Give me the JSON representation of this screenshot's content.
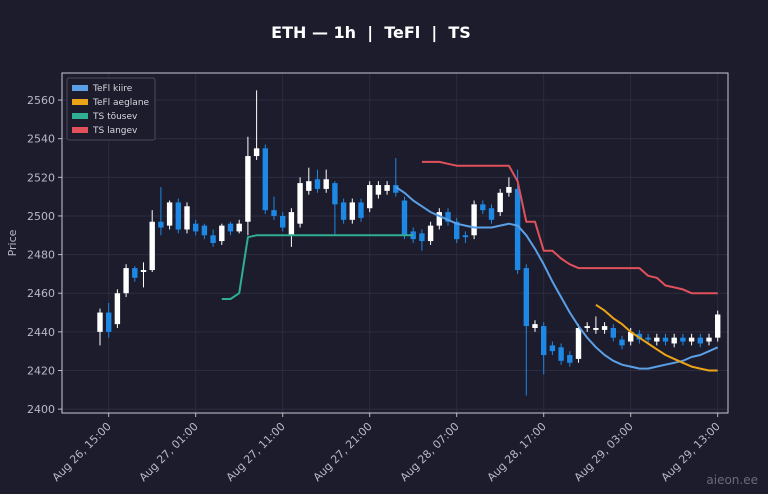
{
  "chart_data": {
    "type": "candlestick",
    "title": "ETH — 1h  |  TeFl  |  TS",
    "ylabel": "Price",
    "watermark": "aieon.ee",
    "grid": true,
    "legend": "upper left",
    "up_color": "#ffffff",
    "down_color": "#1e88e5",
    "ylim": [
      2398,
      2574
    ],
    "yticks": [
      2400,
      2420,
      2440,
      2460,
      2480,
      2500,
      2520,
      2540,
      2560
    ],
    "categories": [
      null,
      "Aug 26, 15:00",
      null,
      null,
      null,
      null,
      null,
      null,
      null,
      null,
      null,
      "Aug 27, 01:00",
      null,
      null,
      null,
      null,
      null,
      null,
      null,
      null,
      null,
      "Aug 27, 11:00",
      null,
      null,
      null,
      null,
      null,
      null,
      null,
      null,
      null,
      "Aug 27, 21:00",
      null,
      null,
      null,
      null,
      null,
      null,
      null,
      null,
      null,
      "Aug 28, 07:00",
      null,
      null,
      null,
      null,
      null,
      null,
      null,
      null,
      null,
      "Aug 28, 17:00",
      null,
      null,
      null,
      null,
      null,
      null,
      null,
      null,
      null,
      "Aug 29, 03:00",
      null,
      null,
      null,
      null,
      null,
      null,
      null,
      null,
      null,
      "Aug 29, 13:00"
    ],
    "open": [
      2440,
      2450,
      2444,
      2460,
      2473,
      2471,
      2472,
      2497,
      2495,
      2507,
      2493,
      2496,
      2495,
      2490,
      2487,
      2496,
      2492,
      2497,
      2531,
      2535,
      2503,
      2500,
      2490,
      2496,
      2513,
      2519,
      2514,
      2517,
      2507,
      2498,
      2507,
      2504,
      2511,
      2513,
      2516,
      2508,
      2492,
      2491,
      2487,
      2495,
      2502,
      2497,
      2490,
      2490,
      2506,
      2504,
      2502,
      2512,
      2514,
      2473,
      2442,
      2443,
      2433,
      2432,
      2428,
      2426,
      2442,
      2441,
      2441,
      2442,
      2436,
      2435,
      2439,
      2437,
      2435,
      2437,
      2434,
      2437,
      2435,
      2437,
      2435,
      2437
    ],
    "high": [
      2452,
      2455,
      2462,
      2475,
      2474,
      2476,
      2503,
      2515,
      2508,
      2509,
      2507,
      2498,
      2496,
      2493,
      2496,
      2497,
      2498,
      2541,
      2565,
      2537,
      2510,
      2502,
      2504,
      2520,
      2525,
      2524,
      2524,
      2518,
      2509,
      2509,
      2509,
      2518,
      2518,
      2518,
      2530,
      2510,
      2494,
      2493,
      2497,
      2504,
      2504,
      2499,
      2492,
      2508,
      2508,
      2506,
      2514,
      2520,
      2524,
      2475,
      2446,
      2445,
      2435,
      2434,
      2430,
      2444,
      2445,
      2448,
      2445,
      2444,
      2438,
      2442,
      2441,
      2439,
      2439,
      2439,
      2439,
      2439,
      2439,
      2439,
      2439,
      2451
    ],
    "low": [
      2433,
      2437,
      2442,
      2458,
      2466,
      2463,
      2471,
      2490,
      2493,
      2491,
      2491,
      2490,
      2488,
      2484,
      2485,
      2490,
      2491,
      2490,
      2529,
      2501,
      2498,
      2492,
      2484,
      2494,
      2511,
      2512,
      2512,
      2490,
      2496,
      2496,
      2497,
      2502,
      2509,
      2511,
      2510,
      2488,
      2486,
      2482,
      2485,
      2493,
      2495,
      2486,
      2486,
      2488,
      2501,
      2496,
      2500,
      2510,
      2470,
      2407,
      2440,
      2418,
      2428,
      2423,
      2422,
      2424,
      2440,
      2439,
      2439,
      2435,
      2431,
      2433,
      2434,
      2434,
      2433,
      2433,
      2432,
      2433,
      2433,
      2432,
      2433,
      2435
    ],
    "close": [
      2450,
      2440,
      2460,
      2473,
      2468,
      2472,
      2497,
      2494,
      2507,
      2493,
      2505,
      2492,
      2490,
      2486,
      2495,
      2492,
      2496,
      2531,
      2535,
      2503,
      2500,
      2494,
      2502,
      2517,
      2518,
      2514,
      2519,
      2506,
      2498,
      2507,
      2499,
      2516,
      2516,
      2516,
      2512,
      2490,
      2488,
      2487,
      2495,
      2502,
      2497,
      2488,
      2489,
      2506,
      2503,
      2498,
      2512,
      2515,
      2472,
      2443,
      2444,
      2428,
      2430,
      2425,
      2424,
      2442,
      2443,
      2442,
      2443,
      2437,
      2433,
      2440,
      2436,
      2436,
      2437,
      2435,
      2437,
      2435,
      2437,
      2434,
      2437,
      2449
    ],
    "series": [
      {
        "name": "TeFl kiire",
        "color": "#5b9fe6",
        "values": [
          null,
          null,
          null,
          null,
          null,
          null,
          null,
          null,
          null,
          null,
          null,
          null,
          null,
          null,
          null,
          null,
          null,
          null,
          null,
          null,
          null,
          null,
          null,
          null,
          null,
          null,
          null,
          null,
          null,
          null,
          null,
          null,
          null,
          null,
          2515,
          2512,
          2508,
          2505,
          2502,
          2500,
          2498,
          2496,
          2495,
          2494,
          2494,
          2494,
          2495,
          2496,
          2495,
          2490,
          2483,
          2475,
          2466,
          2458,
          2450,
          2443,
          2437,
          2432,
          2428,
          2425,
          2423,
          2422,
          2421,
          2421,
          2422,
          2423,
          2424,
          2425,
          2427,
          2428,
          2430,
          2432
        ]
      },
      {
        "name": "TeFl aeglane",
        "color": "#eba417",
        "values": [
          null,
          null,
          null,
          null,
          null,
          null,
          null,
          null,
          null,
          null,
          null,
          null,
          null,
          null,
          null,
          null,
          null,
          null,
          null,
          null,
          null,
          null,
          null,
          null,
          null,
          null,
          null,
          null,
          null,
          null,
          null,
          null,
          null,
          null,
          null,
          null,
          null,
          null,
          null,
          null,
          null,
          null,
          null,
          null,
          null,
          null,
          null,
          null,
          null,
          null,
          null,
          null,
          null,
          null,
          null,
          null,
          null,
          2454,
          2451,
          2447,
          2444,
          2440,
          2437,
          2434,
          2431,
          2428,
          2426,
          2424,
          2422,
          2421,
          2420,
          2420
        ]
      },
      {
        "name": "TS tõusev",
        "color": "#2fae94",
        "values": [
          null,
          null,
          null,
          null,
          null,
          null,
          null,
          null,
          null,
          null,
          null,
          null,
          null,
          null,
          2457,
          2457,
          2460,
          2489,
          2490,
          2490,
          2490,
          2490,
          2490,
          2490,
          2490,
          2490,
          2490,
          2490,
          2490,
          2490,
          2490,
          2490,
          2490,
          2490,
          2490,
          2490,
          2490,
          null,
          null,
          null,
          null,
          null,
          null,
          null,
          null,
          null,
          null,
          null,
          null,
          null,
          null,
          null,
          null,
          null,
          null,
          null,
          null,
          null,
          null,
          null,
          null,
          null,
          null,
          null,
          null,
          null,
          null,
          null,
          null,
          null,
          null,
          null
        ]
      },
      {
        "name": "TS langev",
        "color": "#e0515b",
        "values": [
          null,
          null,
          null,
          null,
          null,
          null,
          null,
          null,
          null,
          null,
          null,
          null,
          null,
          null,
          null,
          null,
          null,
          null,
          null,
          null,
          null,
          null,
          null,
          null,
          null,
          null,
          null,
          null,
          null,
          null,
          null,
          null,
          null,
          null,
          null,
          null,
          null,
          2528,
          2528,
          2528,
          2527,
          2526,
          2526,
          2526,
          2526,
          2526,
          2526,
          2526,
          2518,
          2497,
          2497,
          2482,
          2482,
          2478,
          2475,
          2473,
          2473,
          2473,
          2473,
          2473,
          2473,
          2473,
          2473,
          2469,
          2468,
          2464,
          2463,
          2462,
          2460,
          2460,
          2460,
          2460
        ]
      }
    ]
  }
}
